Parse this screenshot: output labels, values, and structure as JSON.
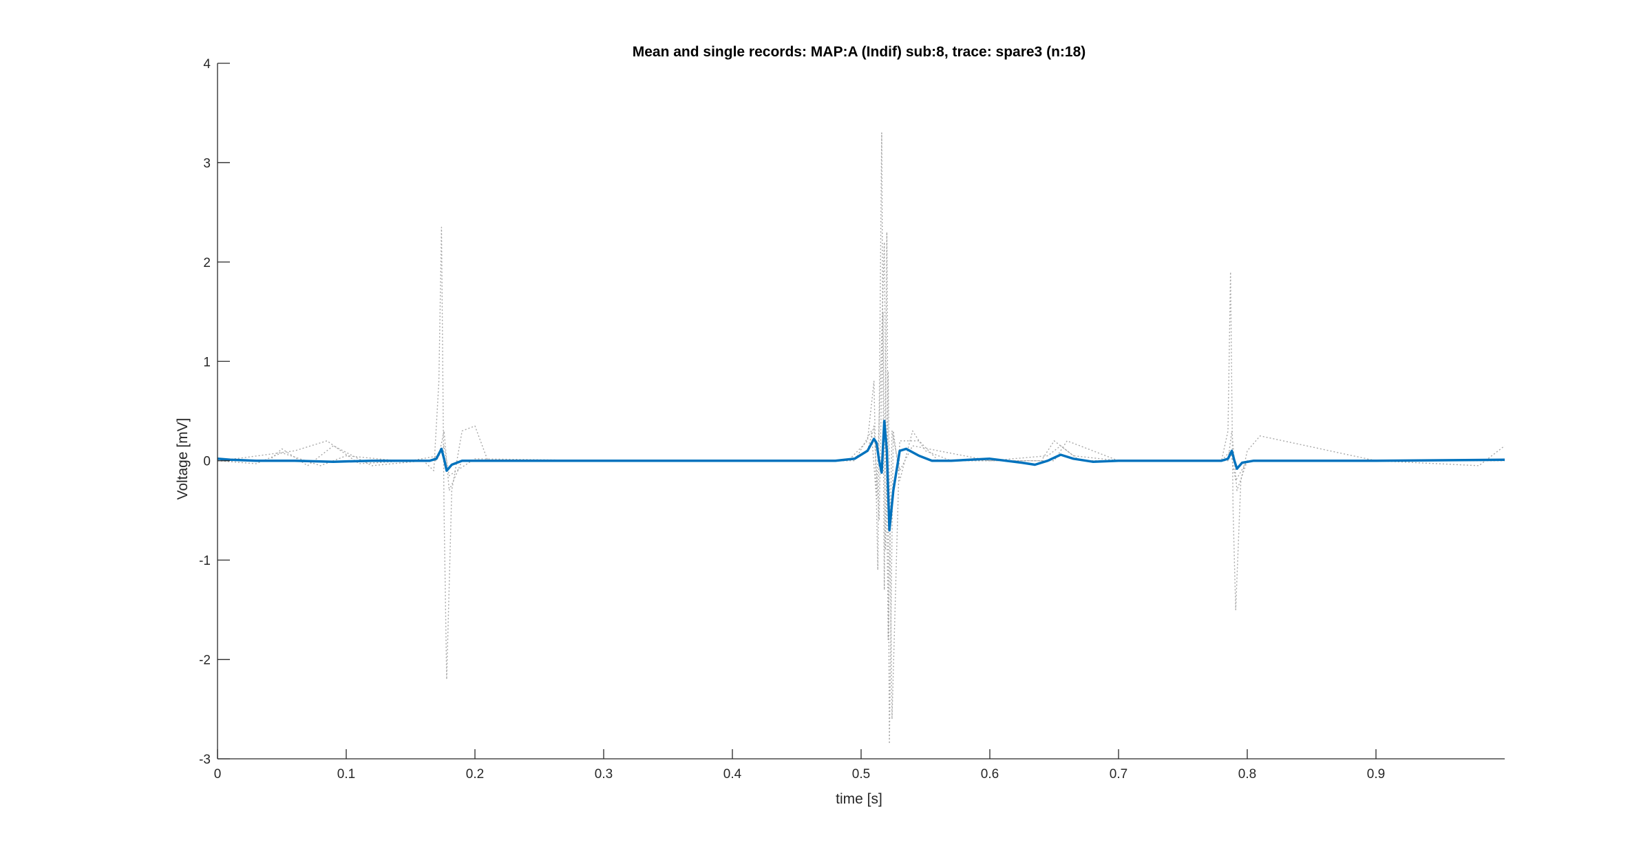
{
  "chart_data": {
    "type": "line",
    "title": "Mean and single records: MAP:A (Indif) sub:8, trace: spare3 (n:18)",
    "xlabel": "time [s]",
    "ylabel": "Voltage [mV]",
    "xlim": [
      0,
      1
    ],
    "ylim": [
      -3,
      4
    ],
    "grid": false,
    "legend": "none",
    "x_ticks": [
      0,
      0.1,
      0.2,
      0.3,
      0.4,
      0.5,
      0.6,
      0.7,
      0.8,
      0.9
    ],
    "x_tick_labels": [
      "0",
      "0.1",
      "0.2",
      "0.3",
      "0.4",
      "0.5",
      "0.6",
      "0.7",
      "0.8",
      "0.9"
    ],
    "y_ticks": [
      -3,
      -2,
      -1,
      0,
      1,
      2,
      3,
      4
    ],
    "y_tick_labels": [
      "-3",
      "-2",
      "-1",
      "0",
      "1",
      "2",
      "3",
      "4"
    ],
    "colors": {
      "mean": "#0072BD",
      "single": "#a6a6a6",
      "axes": "#262626"
    },
    "series": [
      {
        "role": "mean",
        "style": "solid",
        "x": [
          0,
          0.01,
          0.03,
          0.06,
          0.09,
          0.12,
          0.15,
          0.165,
          0.17,
          0.174,
          0.176,
          0.178,
          0.182,
          0.19,
          0.2,
          0.25,
          0.3,
          0.4,
          0.45,
          0.48,
          0.495,
          0.505,
          0.51,
          0.512,
          0.514,
          0.516,
          0.518,
          0.52,
          0.522,
          0.525,
          0.53,
          0.535,
          0.545,
          0.555,
          0.57,
          0.6,
          0.625,
          0.635,
          0.645,
          0.655,
          0.665,
          0.68,
          0.7,
          0.75,
          0.78,
          0.785,
          0.788,
          0.79,
          0.792,
          0.796,
          0.805,
          0.82,
          0.9,
          1.0
        ],
        "y": [
          0.02,
          0.01,
          0.0,
          0.0,
          -0.01,
          0.0,
          0.0,
          0.0,
          0.02,
          0.12,
          0.02,
          -0.1,
          -0.04,
          0.0,
          0.0,
          0.0,
          0.0,
          0.0,
          0.0,
          0.0,
          0.02,
          0.1,
          0.22,
          0.18,
          0.0,
          -0.12,
          0.4,
          0.1,
          -0.7,
          -0.3,
          0.1,
          0.12,
          0.05,
          0.0,
          0.0,
          0.02,
          -0.02,
          -0.04,
          0.0,
          0.06,
          0.02,
          -0.01,
          0.0,
          0.0,
          0.0,
          0.02,
          0.1,
          0.0,
          -0.08,
          -0.02,
          0.0,
          0.0,
          0.0,
          0.01
        ]
      },
      {
        "role": "single",
        "style": "dotted",
        "x": [
          0,
          0.04,
          0.05,
          0.07,
          0.09,
          0.12,
          0.16,
          0.168,
          0.172,
          0.174,
          0.176,
          0.178,
          0.182,
          0.19,
          0.2,
          0.21,
          0.25,
          0.4,
          0.49,
          0.505,
          0.51,
          0.513,
          0.516,
          0.518,
          0.52,
          0.522,
          0.525,
          0.53,
          0.54,
          0.55,
          0.57,
          0.64,
          0.65,
          0.66,
          0.67,
          0.7,
          0.78,
          0.785,
          0.787,
          0.789,
          0.791,
          0.795,
          0.8,
          0.81,
          0.9,
          0.98,
          1.0
        ],
        "y": [
          0.0,
          0.0,
          0.12,
          -0.05,
          0.15,
          -0.05,
          0.0,
          -0.1,
          0.8,
          2.35,
          -0.5,
          -2.2,
          -0.3,
          0.3,
          0.35,
          0.0,
          0.0,
          0.0,
          0.0,
          0.2,
          0.8,
          -1.1,
          3.3,
          -1.3,
          2.3,
          -2.85,
          0.3,
          -0.2,
          0.3,
          0.1,
          0.0,
          0.0,
          0.2,
          0.1,
          0.0,
          0.0,
          0.0,
          0.3,
          1.9,
          -0.5,
          -1.5,
          -0.2,
          0.1,
          0.25,
          0.0,
          -0.05,
          0.15
        ]
      },
      {
        "role": "single",
        "style": "dotted",
        "x": [
          0,
          0.03,
          0.05,
          0.08,
          0.1,
          0.14,
          0.17,
          0.176,
          0.18,
          0.2,
          0.3,
          0.49,
          0.505,
          0.51,
          0.514,
          0.517,
          0.519,
          0.521,
          0.524,
          0.53,
          0.545,
          0.56,
          0.6,
          0.645,
          0.655,
          0.665,
          0.7,
          0.78,
          0.787,
          0.791,
          0.8,
          1.0
        ],
        "y": [
          0.0,
          -0.03,
          0.08,
          -0.05,
          0.05,
          0.0,
          0.0,
          0.15,
          -0.15,
          0.02,
          0.0,
          0.0,
          0.1,
          0.35,
          -0.6,
          1.5,
          -0.9,
          0.9,
          -2.6,
          0.2,
          0.2,
          0.0,
          0.0,
          0.05,
          0.15,
          0.05,
          0.0,
          0.0,
          0.1,
          -0.2,
          0.0,
          0.0
        ]
      },
      {
        "role": "single",
        "style": "dotted",
        "x": [
          0,
          0.02,
          0.06,
          0.085,
          0.11,
          0.15,
          0.172,
          0.176,
          0.18,
          0.19,
          0.3,
          0.495,
          0.508,
          0.512,
          0.515,
          0.518,
          0.521,
          0.524,
          0.53,
          0.54,
          0.6,
          0.65,
          0.66,
          0.7,
          0.785,
          0.788,
          0.792,
          0.8,
          1.0
        ],
        "y": [
          0.0,
          0.03,
          0.1,
          0.2,
          -0.03,
          0.0,
          0.05,
          0.3,
          -0.3,
          0.0,
          0.0,
          0.0,
          0.3,
          -0.4,
          0.8,
          2.2,
          -1.8,
          0.3,
          -0.1,
          0.15,
          0.0,
          0.0,
          0.2,
          0.0,
          0.0,
          0.3,
          -0.3,
          0.0,
          0.0
        ]
      }
    ]
  }
}
